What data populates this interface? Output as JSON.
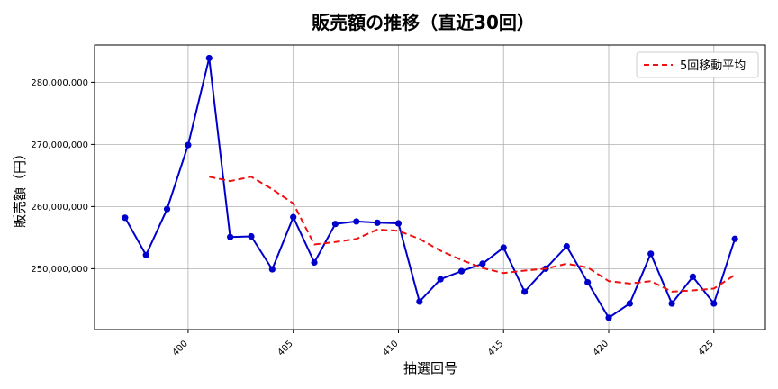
{
  "chart_data": {
    "type": "line",
    "title": "販売額の推移（直近30回）",
    "xlabel": "抽選回号",
    "ylabel": "販売額（円）",
    "xlim": [
      395.55,
      427.45
    ],
    "ylim": [
      240200000,
      286000000
    ],
    "xticks": [
      400,
      405,
      410,
      415,
      420,
      425
    ],
    "xtick_labels": [
      "400",
      "405",
      "410",
      "415",
      "420",
      "425"
    ],
    "yticks": [
      250000000,
      260000000,
      270000000,
      280000000
    ],
    "ytick_labels": [
      "250,000,000",
      "260,000,000",
      "270,000,000",
      "280,000,000"
    ],
    "grid": true,
    "legend_position": "top-right",
    "series": [
      {
        "name": "",
        "style": "solid-marker",
        "color": "#0000cc",
        "x": [
          397,
          398,
          399,
          400,
          401,
          402,
          403,
          404,
          405,
          406,
          407,
          408,
          409,
          410,
          411,
          412,
          413,
          414,
          415,
          416,
          417,
          418,
          419,
          420,
          421,
          422,
          423,
          424,
          425,
          426
        ],
        "y": [
          258200000,
          252200000,
          259600000,
          269900000,
          283900000,
          255100000,
          255200000,
          249900000,
          258300000,
          251000000,
          257200000,
          257600000,
          257400000,
          257300000,
          244700000,
          248300000,
          249600000,
          250800000,
          253400000,
          246300000,
          250000000,
          253600000,
          247800000,
          242100000,
          244400000,
          252400000,
          244400000,
          248700000,
          244400000,
          254800000
        ]
      },
      {
        "name": "5回移動平均",
        "style": "dashed",
        "color": "#ee1111",
        "x": [
          401,
          402,
          403,
          404,
          405,
          406,
          407,
          408,
          409,
          410,
          411,
          412,
          413,
          414,
          415,
          416,
          417,
          418,
          419,
          420,
          421,
          422,
          423,
          424,
          425,
          426
        ],
        "y": [
          264800000,
          264100000,
          264800000,
          262800000,
          260500000,
          253900000,
          254300000,
          254800000,
          256300000,
          256100000,
          254800000,
          252900000,
          251400000,
          250100000,
          249300000,
          249700000,
          250000000,
          250800000,
          250200000,
          248000000,
          247600000,
          248000000,
          246300000,
          246500000,
          246800000,
          249000000
        ]
      }
    ]
  }
}
